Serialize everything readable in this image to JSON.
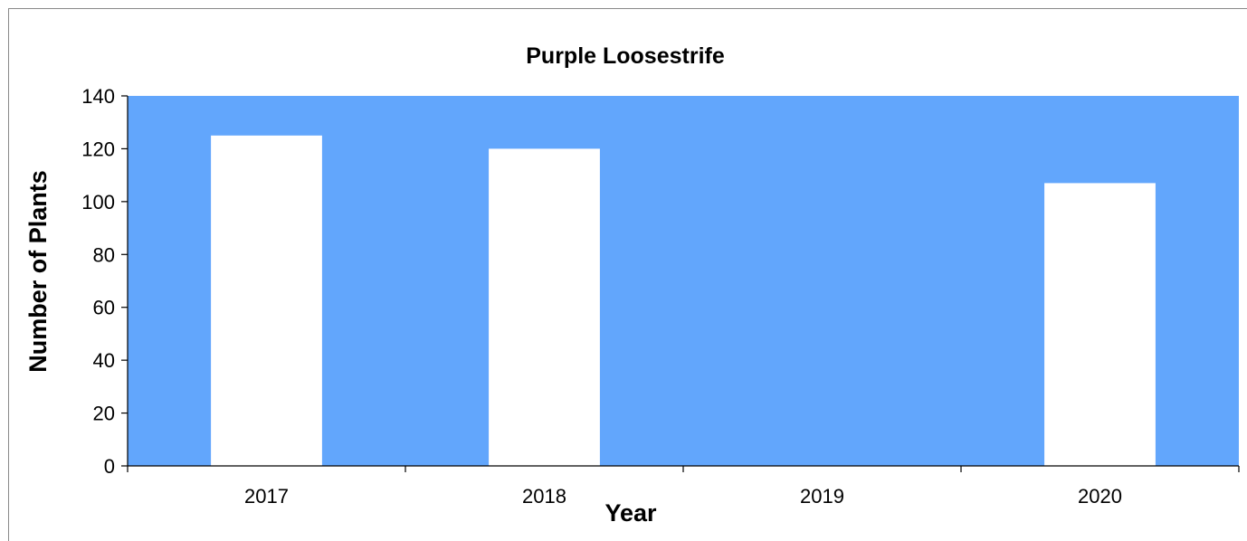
{
  "chart_data": {
    "type": "bar",
    "title": "Purple Loosestrife",
    "xlabel": "Year",
    "ylabel": "Number of Plants",
    "categories": [
      "2017",
      "2018",
      "2019",
      "2020"
    ],
    "values": [
      125,
      120,
      0,
      107
    ],
    "ylim": [
      0,
      140
    ],
    "yticks": [
      "0",
      "20",
      "40",
      "60",
      "80",
      "100",
      "120",
      "140"
    ],
    "grid": false,
    "legend": "none",
    "colors": {
      "plot_area": "#62a6fc",
      "bar": "#ffffff",
      "axis": "#000000"
    }
  }
}
